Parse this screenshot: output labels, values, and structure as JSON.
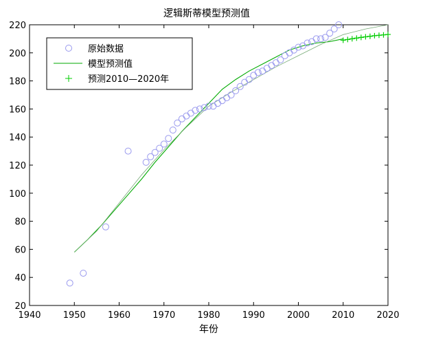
{
  "chart_data": {
    "type": "line",
    "title": "逻辑斯蒂模型预测值",
    "xlabel": "年份",
    "ylabel": "",
    "xlim": [
      1940,
      2020
    ],
    "ylim": [
      20,
      220
    ],
    "xticks": [
      1940,
      1950,
      1960,
      1970,
      1980,
      1990,
      2000,
      2010,
      2020
    ],
    "yticks": [
      20,
      40,
      60,
      80,
      100,
      120,
      140,
      160,
      180,
      200,
      220
    ],
    "legend_position": "top-left",
    "series": [
      {
        "name": "原始数据",
        "style": "circle-markers",
        "color": "#9999ee",
        "x": [
          1949,
          1952,
          1957,
          1962,
          1966,
          1967,
          1968,
          1969,
          1970,
          1971,
          1972,
          1973,
          1974,
          1975,
          1976,
          1977,
          1978,
          1979,
          1980,
          1981,
          1982,
          1983,
          1984,
          1985,
          1986,
          1987,
          1988,
          1989,
          1990,
          1991,
          1992,
          1993,
          1994,
          1995,
          1996,
          1997,
          1998,
          1999,
          2000,
          2001,
          2002,
          2003,
          2004,
          2005,
          2006,
          2007,
          2008,
          2009
        ],
        "y": [
          36,
          43,
          76,
          130,
          122,
          126,
          129,
          132,
          135,
          139,
          145,
          150,
          153,
          155,
          157,
          159,
          160,
          161,
          162,
          162,
          164,
          166,
          168,
          170,
          173,
          176,
          179,
          181,
          184,
          186,
          187,
          189,
          191,
          193,
          195,
          198,
          200,
          202,
          204,
          205,
          207,
          208,
          210,
          210,
          211,
          214,
          217,
          220
        ]
      },
      {
        "name": "模型预测值",
        "style": "line",
        "color": "#00aa00",
        "x": [
          1950,
          1953,
          1956,
          1959,
          1962,
          1965,
          1968,
          1971,
          1974,
          1977,
          1980,
          1983,
          1986,
          1989,
          1992,
          1995,
          1998,
          2001,
          2004,
          2007,
          2010
        ],
        "y": [
          58,
          67,
          77,
          88,
          99,
          110,
          122,
          133,
          144,
          154,
          164,
          174,
          181,
          187,
          192,
          197,
          202,
          205,
          207,
          208,
          210
        ]
      },
      {
        "name": "预测2010—2020年",
        "style": "plus-markers",
        "color": "#00cc00",
        "x": [
          2010,
          2011,
          2012,
          2013,
          2014,
          2015,
          2016,
          2017,
          2018,
          2019,
          2020
        ],
        "y": [
          209.0,
          209.5,
          210.0,
          210.5,
          211.0,
          211.4,
          211.8,
          212.2,
          212.5,
          212.8,
          213.1
        ]
      },
      {
        "name": "",
        "style": "thin-line",
        "color": "#77aa77",
        "x": [
          1950,
          1955,
          1960,
          1965,
          1970,
          1975,
          1980,
          1985,
          1990,
          1995,
          2000,
          2005,
          2010,
          2015,
          2020
        ],
        "y": [
          58,
          73,
          93,
          113,
          131,
          147,
          162,
          172,
          181,
          190,
          198,
          206,
          213,
          217,
          220
        ]
      }
    ]
  }
}
